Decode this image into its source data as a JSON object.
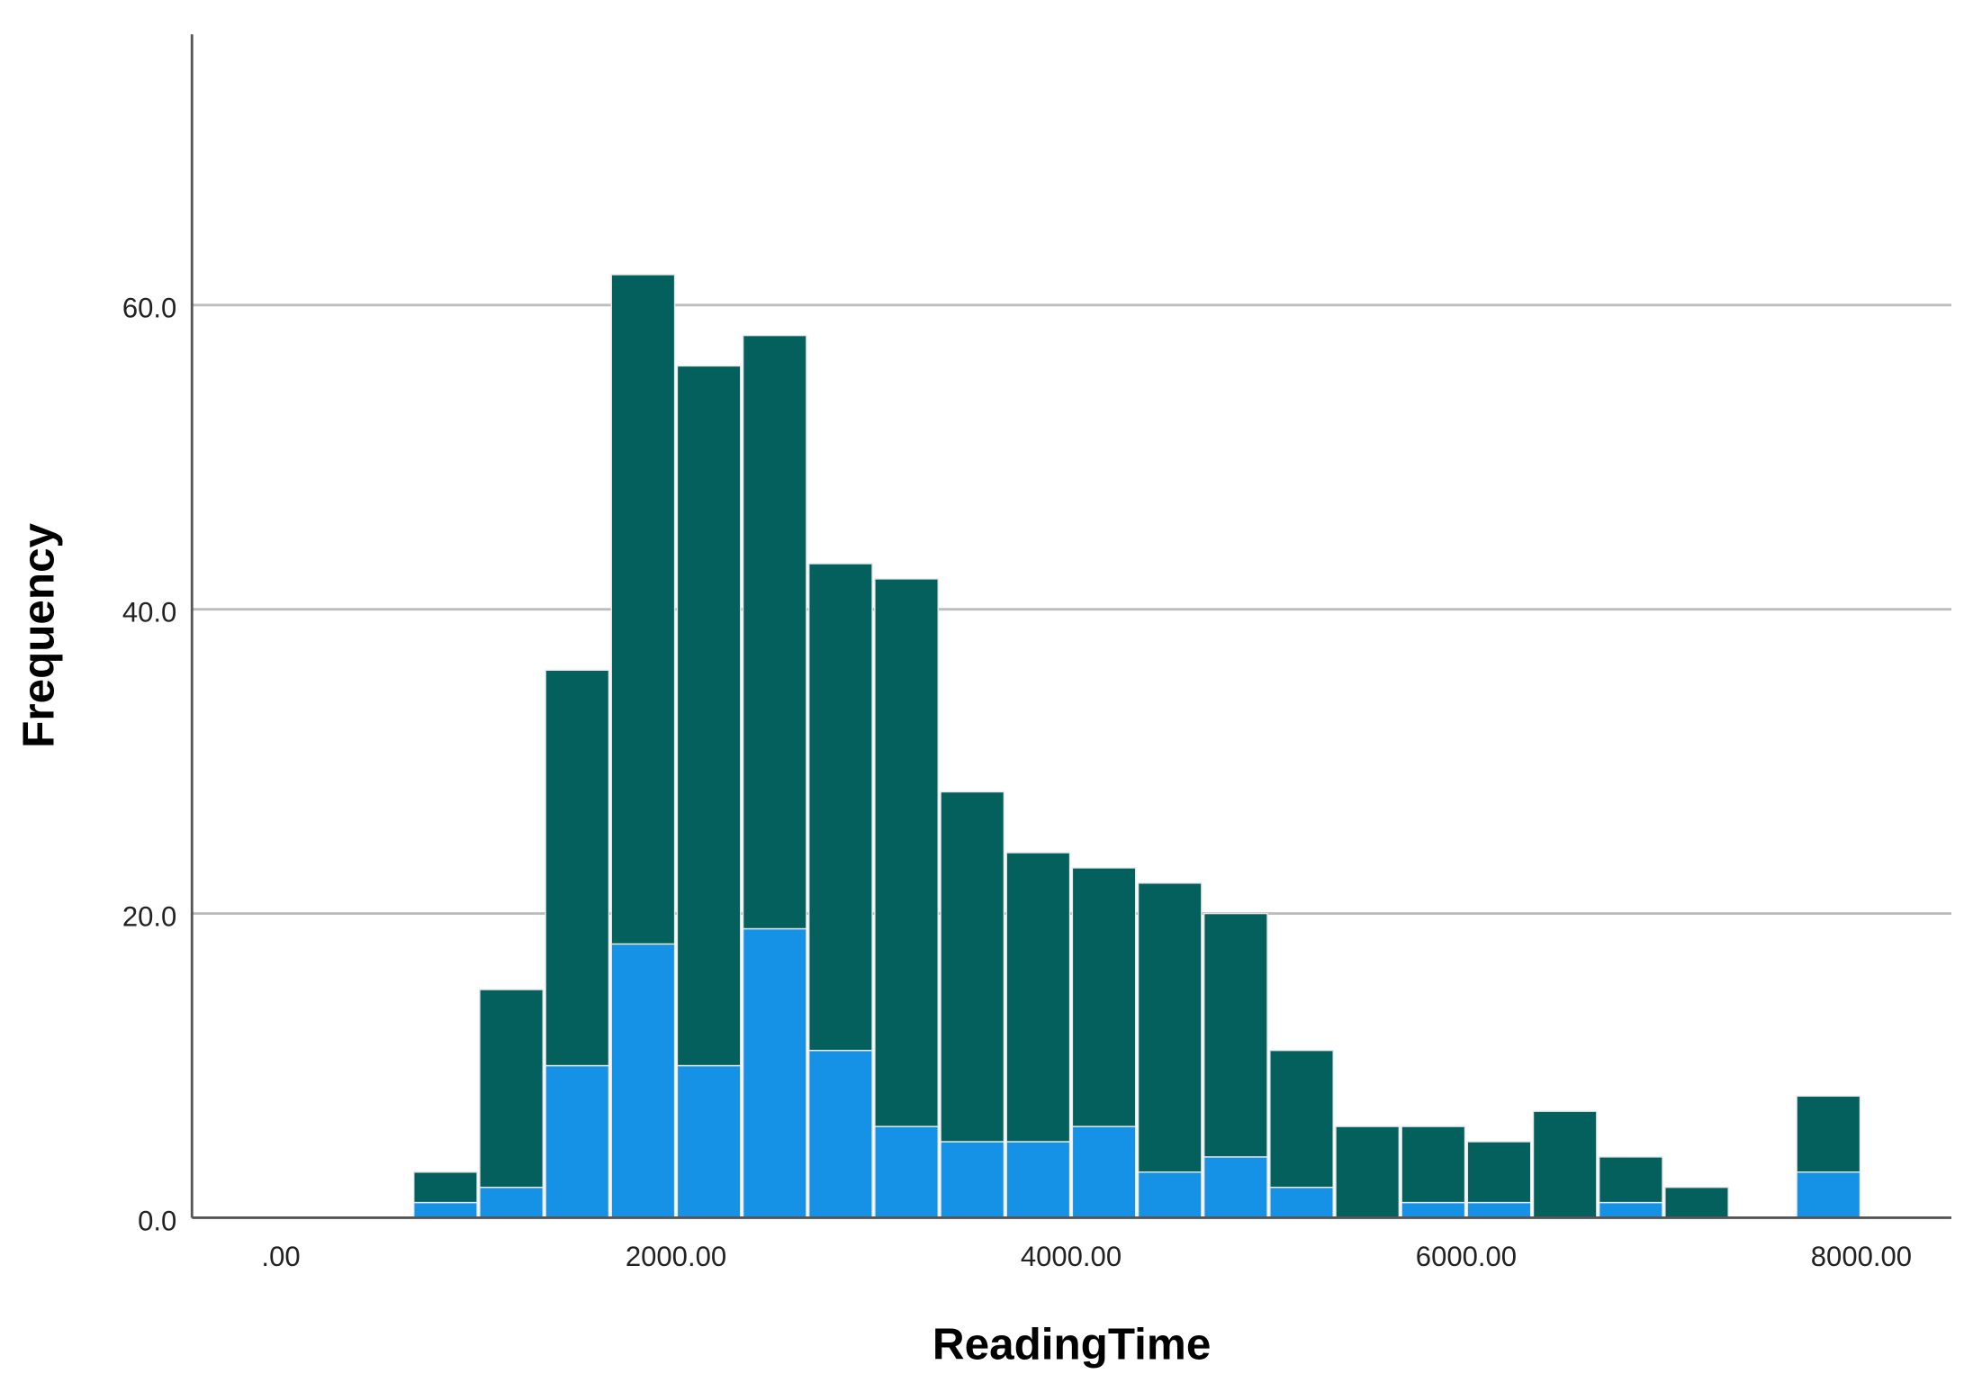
{
  "chart_data": {
    "type": "histogram",
    "x_label": "ReadingTime",
    "y_label": "Frequency",
    "bins": [
      666.67,
      1000,
      1333.33,
      1666.67,
      2000,
      2333.33,
      2666.67,
      3000,
      3333.33,
      3666.67,
      4000,
      4333.33,
      4666.67,
      5000,
      5333.33,
      5666.67,
      6000,
      6333.33,
      6666.67,
      7000,
      7333.33,
      7666.67,
      8000
    ],
    "series": [
      {
        "color": "#1591e6",
        "values": [
          1,
          2,
          10,
          18,
          10,
          19,
          11,
          6,
          5,
          5,
          6,
          3,
          4,
          2,
          0,
          1,
          1,
          0,
          1,
          0,
          0,
          3
        ]
      },
      {
        "color": "#04605c",
        "values": [
          2,
          13,
          26,
          44,
          46,
          39,
          32,
          36,
          23,
          19,
          17,
          19,
          16,
          9,
          6,
          5,
          4,
          7,
          3,
          2,
          0,
          5
        ]
      }
    ],
    "xlim": [
      -450,
      8456
    ],
    "ylim": [
      0,
      77.8
    ],
    "xticks": [
      {
        "value": 0,
        "label": ".00"
      },
      {
        "value": 2000,
        "label": "2000.00"
      },
      {
        "value": 4000,
        "label": "4000.00"
      },
      {
        "value": 6000,
        "label": "6000.00"
      },
      {
        "value": 8000,
        "label": "8000.00"
      }
    ],
    "yticks": [
      {
        "value": 0,
        "label": "0.0"
      },
      {
        "value": 20,
        "label": "20.0"
      },
      {
        "value": 40,
        "label": "40.0"
      },
      {
        "value": 60,
        "label": "60.0"
      }
    ],
    "grid": true
  }
}
